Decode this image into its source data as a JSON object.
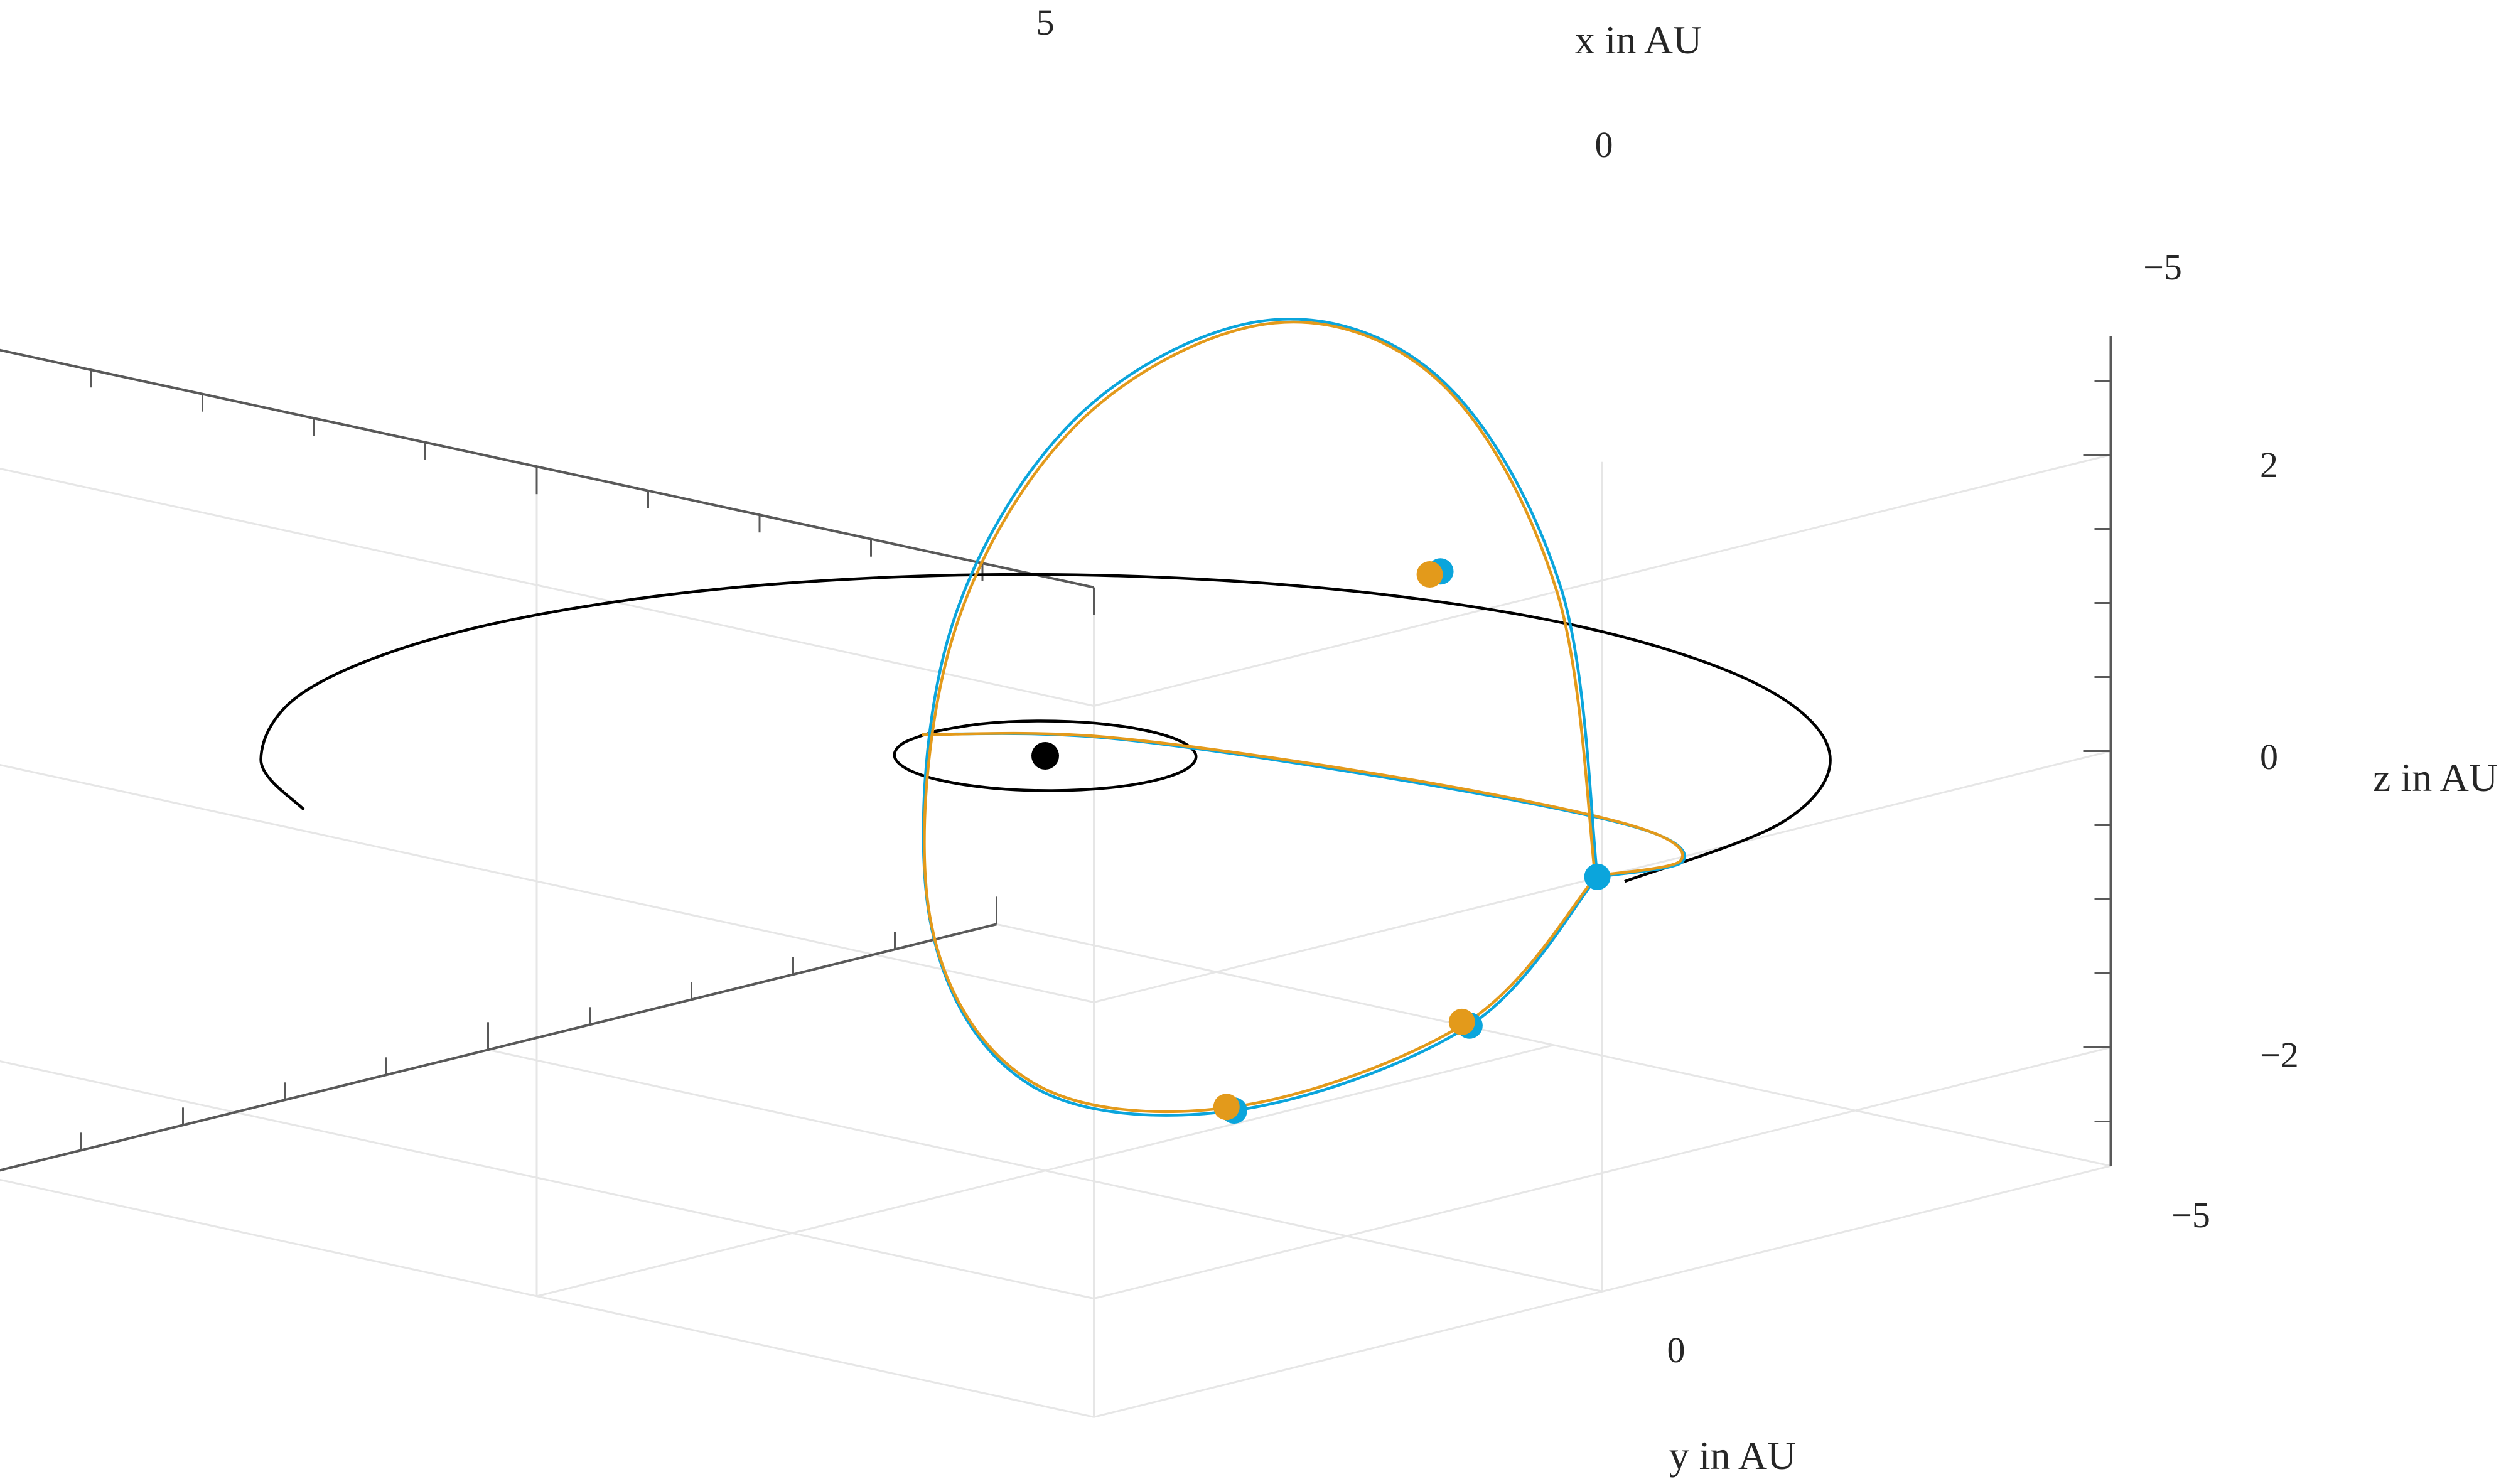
{
  "chart_data": {
    "type": "line3d",
    "title": "",
    "x_axis": {
      "label": "x in AU",
      "ticks": [
        {
          "value": 5,
          "label": "5"
        },
        {
          "value": 0,
          "label": "0"
        },
        {
          "value": -5,
          "label": "−5"
        }
      ],
      "range": [
        -5,
        5
      ]
    },
    "y_axis": {
      "label": "y in AU",
      "ticks": [
        {
          "value": 0,
          "label": "0"
        },
        {
          "value": -5,
          "label": "−5"
        }
      ],
      "range": [
        -5,
        5
      ]
    },
    "z_axis": {
      "label": "z in AU",
      "ticks": [
        {
          "value": 2,
          "label": "2"
        },
        {
          "value": 0,
          "label": "0"
        },
        {
          "value": -2,
          "label": "−2"
        }
      ],
      "range": [
        -2.8,
        2.8
      ]
    },
    "grid": true,
    "colors": {
      "black": "#000000",
      "blue": "#0BA5DC",
      "orange": "#E39A1B",
      "axis": "#595959",
      "grid": "#E6E6E6"
    },
    "series": [
      {
        "kind": "orbit",
        "color": "black",
        "points_xyz": [
          [
            1.0,
            0,
            0
          ],
          [
            0.924,
            0.383,
            0
          ],
          [
            0.707,
            0.707,
            0
          ],
          [
            0.383,
            0.924,
            0
          ],
          [
            0,
            1.0,
            0
          ],
          [
            -0.383,
            0.924,
            0
          ],
          [
            -0.707,
            0.707,
            0
          ],
          [
            -0.924,
            0.383,
            0
          ],
          [
            -1.0,
            0,
            0
          ],
          [
            -0.924,
            -0.383,
            0
          ],
          [
            -0.707,
            -0.707,
            0
          ],
          [
            -0.383,
            -0.924,
            0
          ],
          [
            0,
            -1.0,
            0
          ],
          [
            0.383,
            -0.924,
            0
          ],
          [
            0.707,
            -0.707,
            0
          ],
          [
            0.924,
            -0.383,
            0
          ],
          [
            1.0,
            0,
            0
          ]
        ]
      },
      {
        "kind": "orbit",
        "color": "black",
        "points_xyz": [
          [
            -5.2,
            0,
            0
          ],
          [
            -4.8,
            -2.0,
            0
          ],
          [
            -3.68,
            -3.68,
            0
          ],
          [
            -2.0,
            -4.8,
            0
          ],
          [
            0,
            -5.2,
            0
          ],
          [
            2.0,
            -4.8,
            0
          ],
          [
            3.68,
            -3.68,
            0
          ],
          [
            4.8,
            -2.0,
            0
          ],
          [
            5.2,
            0,
            0
          ],
          [
            4.8,
            2.0,
            0
          ],
          [
            3.68,
            3.68,
            0
          ],
          [
            2.5,
            4.55,
            0
          ]
        ]
      },
      {
        "kind": "trajectory",
        "color": "blue",
        "points_xyz": [
          [
            1.0,
            0.1,
            0
          ],
          [
            0.6,
            -1.3,
            -0.2
          ],
          [
            -0.8,
            -2.7,
            -0.5
          ],
          [
            -2.2,
            -3.4,
            -0.7
          ],
          [
            -2.8,
            -3.2,
            -0.8
          ],
          [
            -2.4,
            -2.8,
            -0.9
          ]
        ]
      },
      {
        "kind": "trajectory",
        "color": "orange",
        "points_xyz": [
          [
            1.0,
            0.12,
            0
          ],
          [
            0.6,
            -1.28,
            -0.19
          ],
          [
            -0.8,
            -2.68,
            -0.48
          ],
          [
            -2.2,
            -3.38,
            -0.69
          ],
          [
            -2.8,
            -3.18,
            -0.79
          ],
          [
            -2.4,
            -2.78,
            -0.89
          ]
        ]
      },
      {
        "kind": "orbit",
        "color": "blue",
        "points_xyz": [
          [
            -2.4,
            -2.8,
            -0.9
          ],
          [
            -1.8,
            -2.2,
            -1.9
          ],
          [
            -0.6,
            -1.2,
            -2.5
          ],
          [
            0.6,
            -0.5,
            -2.4
          ],
          [
            1.4,
            -0.4,
            -1.4
          ],
          [
            1.6,
            -0.8,
            0.4
          ],
          [
            1.2,
            -1.6,
            1.8
          ],
          [
            0.2,
            -2.4,
            2.5
          ],
          [
            -0.9,
            -2.9,
            2.2
          ],
          [
            -1.8,
            -3.1,
            0.9
          ],
          [
            -2.4,
            -2.8,
            -0.9
          ]
        ]
      },
      {
        "kind": "orbit",
        "color": "orange",
        "points_xyz": [
          [
            -2.4,
            -2.78,
            -0.9
          ],
          [
            -1.78,
            -2.2,
            -1.88
          ],
          [
            -0.58,
            -1.2,
            -2.48
          ],
          [
            0.62,
            -0.52,
            -2.38
          ],
          [
            1.42,
            -0.42,
            -1.38
          ],
          [
            1.58,
            -0.82,
            0.4
          ],
          [
            1.18,
            -1.62,
            1.78
          ],
          [
            0.18,
            -2.42,
            2.48
          ],
          [
            -0.92,
            -2.88,
            2.18
          ],
          [
            -1.78,
            -3.08,
            0.88
          ],
          [
            -2.4,
            -2.78,
            -0.9
          ]
        ]
      }
    ],
    "markers": [
      {
        "color": "black",
        "xyz": [
          0,
          0,
          0
        ]
      },
      {
        "color": "blue",
        "xyz": [
          -2.4,
          -2.8,
          -0.9
        ]
      },
      {
        "color": "blue",
        "xyz": [
          -0.9,
          -2.9,
          0.9
        ]
      },
      {
        "color": "blue",
        "xyz": [
          -0.6,
          -1.2,
          -2.5
        ]
      },
      {
        "color": "blue",
        "xyz": [
          -1.8,
          -2.2,
          -1.9
        ]
      },
      {
        "color": "orange",
        "xyz": [
          -0.85,
          -2.85,
          0.88
        ]
      },
      {
        "color": "orange",
        "xyz": [
          -0.55,
          -1.18,
          -2.48
        ]
      },
      {
        "color": "orange",
        "xyz": [
          -1.75,
          -2.18,
          -1.88
        ]
      }
    ]
  }
}
